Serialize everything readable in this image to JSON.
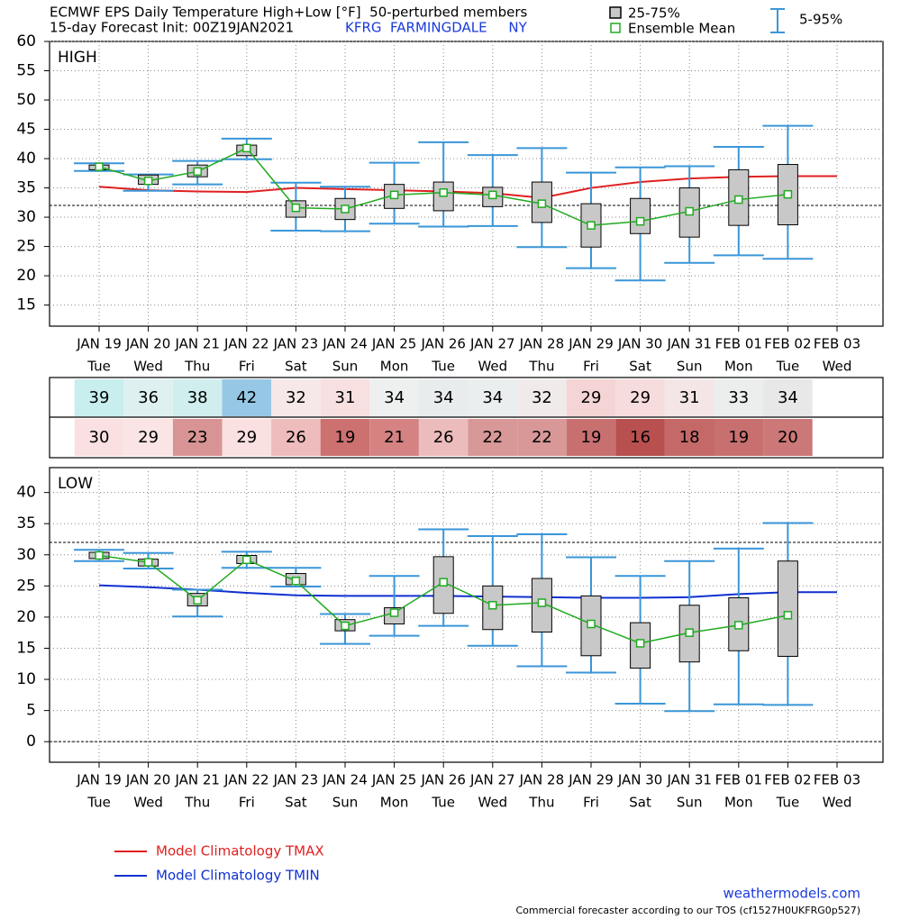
{
  "header": {
    "title": "ECMWF EPS Daily Temperature High+Low [°F]  50-perturbed members",
    "init": "15-day Forecast Init: 00Z19JAN2021",
    "station": "KFRG  FARMINGDALE     NY"
  },
  "chart_data": [
    {
      "type": "box",
      "title": "HIGH",
      "categories": [
        "JAN 19",
        "JAN 20",
        "JAN 21",
        "JAN 22",
        "JAN 23",
        "JAN 24",
        "JAN 25",
        "JAN 26",
        "JAN 27",
        "JAN 28",
        "JAN 29",
        "JAN 30",
        "JAN 31",
        "FEB 01",
        "FEB 02",
        "FEB 03"
      ],
      "weekdays": [
        "Tue",
        "Wed",
        "Thu",
        "Fri",
        "Sat",
        "Sun",
        "Mon",
        "Tue",
        "Wed",
        "Thu",
        "Fri",
        "Sat",
        "Sun",
        "Mon",
        "Tue",
        "Wed"
      ],
      "ylim": [
        11.4,
        60
      ],
      "yticks": [
        15,
        20,
        25,
        30,
        35,
        40,
        45,
        50,
        55,
        60
      ],
      "grid": true,
      "reference_lines": [
        32
      ],
      "box": {
        "name": "25-75%",
        "color": "#c8c8c8",
        "q1": [
          38.1,
          35.6,
          36.9,
          40.5,
          30.0,
          29.6,
          31.5,
          31.1,
          31.8,
          29.1,
          24.9,
          27.2,
          26.6,
          28.6,
          28.7,
          null
        ],
        "q3": [
          38.9,
          37.2,
          38.9,
          42.3,
          32.8,
          33.2,
          35.6,
          36.0,
          35.1,
          36.0,
          32.3,
          33.2,
          35.0,
          38.1,
          39.0,
          null
        ]
      },
      "whisker": {
        "name": "5-95%",
        "color": "#3a96d8",
        "low": [
          37.9,
          34.5,
          35.6,
          39.9,
          27.7,
          27.6,
          28.9,
          28.4,
          28.5,
          24.9,
          21.3,
          19.2,
          22.2,
          23.5,
          22.9,
          null
        ],
        "high": [
          39.2,
          37.3,
          39.6,
          43.4,
          35.9,
          35.2,
          39.3,
          42.8,
          40.6,
          41.8,
          37.6,
          38.5,
          38.7,
          42.0,
          45.6,
          null
        ]
      },
      "mean": {
        "name": "Ensemble Mean",
        "color": "#22aa22",
        "values": [
          38.6,
          36.2,
          37.8,
          41.8,
          31.6,
          31.4,
          33.8,
          34.2,
          33.8,
          32.3,
          28.6,
          29.3,
          31.0,
          33.0,
          33.9,
          null
        ],
        "value_labels": [
          "39",
          "36",
          "38",
          "42",
          "32",
          "31",
          "34",
          "34",
          "34",
          "32",
          "29",
          "29",
          "31",
          "33",
          "34",
          null
        ],
        "label_colors": [
          "#c8eeee",
          "#dff0f0",
          "#d0eeee",
          "#96c8e6",
          "#f6e8e8",
          "#f8e0e0",
          "#eef0f0",
          "#e8ecec",
          "#ebeeee",
          "#f0eaea",
          "#f4d4d4",
          "#f6dcdc",
          "#f4e6e6",
          "#eceeee",
          "#e8e8e8",
          null
        ]
      },
      "climatology": {
        "name": "Model Climatology TMAX",
        "color": "#e02020",
        "values": [
          35.2,
          34.6,
          34.4,
          34.3,
          35.0,
          34.8,
          34.6,
          34.4,
          34.1,
          33.3,
          35.0,
          36.0,
          36.6,
          36.9,
          37.0,
          37.0
        ]
      }
    },
    {
      "type": "box",
      "title": "LOW",
      "categories": [
        "JAN 19",
        "JAN 20",
        "JAN 21",
        "JAN 22",
        "JAN 23",
        "JAN 24",
        "JAN 25",
        "JAN 26",
        "JAN 27",
        "JAN 28",
        "JAN 29",
        "JAN 30",
        "JAN 31",
        "FEB 01",
        "FEB 02",
        "FEB 03"
      ],
      "weekdays": [
        "Tue",
        "Wed",
        "Thu",
        "Fri",
        "Sat",
        "Sun",
        "Mon",
        "Tue",
        "Wed",
        "Thu",
        "Fri",
        "Sat",
        "Sun",
        "Mon",
        "Tue",
        "Wed"
      ],
      "ylim": [
        -3.3,
        44
      ],
      "yticks": [
        0,
        5,
        10,
        15,
        20,
        25,
        30,
        35,
        40
      ],
      "grid": true,
      "reference_lines": [
        32,
        0
      ],
      "box": {
        "color": "#c8c8c8",
        "q1": [
          29.4,
          28.2,
          21.8,
          28.6,
          25.2,
          17.8,
          18.9,
          20.6,
          18.0,
          17.6,
          13.8,
          11.8,
          12.8,
          14.6,
          13.7,
          null
        ],
        "q3": [
          30.4,
          29.3,
          23.8,
          29.9,
          27.0,
          19.6,
          21.5,
          29.7,
          25.0,
          26.2,
          23.4,
          19.1,
          21.9,
          23.1,
          29.0,
          null
        ]
      },
      "whisker": {
        "color": "#3a96d8",
        "low": [
          29.0,
          27.8,
          20.1,
          27.9,
          24.9,
          15.7,
          17.0,
          18.6,
          15.4,
          12.1,
          11.1,
          6.1,
          4.9,
          6.0,
          5.9,
          null
        ],
        "high": [
          30.8,
          30.3,
          24.4,
          30.5,
          27.9,
          20.5,
          26.6,
          34.1,
          33.0,
          33.3,
          29.6,
          26.6,
          29.0,
          31.0,
          35.1,
          null
        ]
      },
      "mean": {
        "color": "#22aa22",
        "values": [
          29.9,
          28.8,
          22.7,
          29.2,
          25.8,
          18.6,
          20.7,
          25.6,
          21.9,
          22.3,
          18.9,
          15.8,
          17.5,
          18.7,
          20.3,
          null
        ],
        "value_labels": [
          "30",
          "29",
          "23",
          "29",
          "26",
          "19",
          "21",
          "26",
          "22",
          "22",
          "19",
          "16",
          "18",
          "19",
          "20",
          null
        ],
        "label_colors": [
          "#fae0e0",
          "#fae4e4",
          "#d89494",
          "#fae0e0",
          "#eebcbc",
          "#cc7070",
          "#d48282",
          "#ecbcbc",
          "#d89898",
          "#d89898",
          "#c87070",
          "#b85050",
          "#c46868",
          "#c87070",
          "#cc7878",
          null
        ]
      },
      "climatology": {
        "name": "Model Climatology TMIN",
        "color": "#1030d0",
        "values": [
          25.1,
          24.8,
          24.4,
          23.9,
          23.5,
          23.4,
          23.4,
          23.4,
          23.3,
          23.2,
          23.1,
          23.1,
          23.2,
          23.7,
          24.0,
          24.0
        ]
      }
    }
  ],
  "footer": {
    "site": "weathermodels.com",
    "note": "Commercial forecaster according to our TOS (cf1527H0UKFRG0p527)"
  }
}
